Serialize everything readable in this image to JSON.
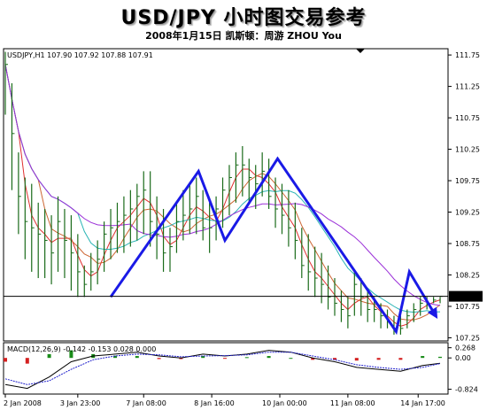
{
  "header": {
    "title": "USD/JPY 小时图交易参考",
    "subtitle": "2008年1月15日  凯斯顿：周游 ZHOU You"
  },
  "colors": {
    "price_bar": "#1a6b1a",
    "bar_up": "#1a8c1a",
    "bar_down": "#d42020",
    "ma_fast": "#e03030",
    "ma_mid": "#cc6633",
    "ma_slow": "#2ab4b4",
    "ma_slowest": "#9b30d8",
    "pattern": "#1a1ae6",
    "macd_line": "#000000",
    "signal_line": "#2020cc",
    "hist_pos": "#1a8c1a",
    "hist_neg": "#d42020"
  },
  "chart_data": {
    "type": "line",
    "instrument_label": "USDJPY,H1  107.90 107.92 107.88 107.91",
    "current_price": "107.91",
    "current_price_value": 107.91,
    "ylim": [
      107.2,
      111.85
    ],
    "y_ticks": [
      "111.75",
      "111.25",
      "110.75",
      "110.25",
      "109.75",
      "109.25",
      "108.75",
      "108.25",
      "107.75",
      "107.25"
    ],
    "x_ticks": [
      "2 Jan 2008",
      "3 Jan 23:00",
      "7 Jan 08:00",
      "8 Jan 16:00",
      "10 Jan 00:00",
      "11 Jan 08:00",
      "14 Jan 17:00"
    ],
    "x_range": [
      0,
      100
    ],
    "x_tick_positions": [
      0,
      16.5,
      31.5,
      47,
      62.5,
      78,
      94
    ],
    "price": {
      "x": [
        0,
        1.5,
        3,
        4.5,
        6,
        7.5,
        9,
        10.5,
        12,
        13.5,
        15,
        16.5,
        18,
        19.5,
        21,
        22.5,
        24,
        25.5,
        27,
        28.5,
        30,
        31.5,
        33,
        34.5,
        36,
        37.5,
        39,
        40.5,
        42,
        43.5,
        45,
        46.5,
        48,
        49.5,
        51,
        52.5,
        54,
        55.5,
        57,
        58.5,
        60,
        61.5,
        63,
        64.5,
        66,
        67.5,
        69,
        70.5,
        72,
        73.5,
        75,
        76.5,
        78,
        79.5,
        81,
        82.5,
        84,
        85.5,
        87,
        88.5,
        90,
        91.5,
        93,
        94.5,
        96,
        97.5,
        99
      ],
      "high": [
        111.8,
        111.3,
        110.2,
        109.8,
        109.7,
        109.4,
        109.3,
        109.2,
        109.5,
        109.3,
        109.2,
        108.9,
        108.4,
        108.6,
        108.8,
        109.1,
        109.3,
        109.4,
        109.5,
        109.6,
        109.7,
        109.9,
        109.9,
        109.5,
        109.3,
        109.0,
        109.4,
        109.6,
        109.7,
        109.8,
        109.6,
        109.4,
        109.5,
        109.8,
        110.0,
        110.2,
        110.3,
        110.1,
        110.0,
        110.2,
        110.1,
        109.8,
        109.7,
        109.6,
        109.4,
        109.0,
        108.9,
        108.7,
        108.6,
        108.4,
        108.2,
        108.0,
        107.9,
        108.3,
        108.2,
        108.0,
        107.9,
        107.8,
        107.7,
        107.6,
        107.6,
        107.7,
        107.8,
        107.9,
        107.9,
        107.9,
        107.9
      ],
      "low": [
        110.8,
        109.6,
        108.9,
        108.5,
        108.3,
        108.2,
        108.2,
        108.1,
        108.3,
        108.2,
        108.0,
        107.9,
        107.9,
        108.0,
        108.1,
        108.3,
        108.5,
        108.6,
        108.6,
        108.7,
        108.8,
        108.9,
        108.7,
        108.5,
        108.3,
        108.3,
        108.6,
        108.8,
        108.9,
        108.9,
        108.8,
        108.6,
        108.8,
        109.0,
        109.2,
        109.4,
        109.5,
        109.4,
        109.3,
        109.5,
        109.3,
        109.0,
        108.9,
        108.7,
        108.5,
        108.2,
        108.0,
        107.9,
        107.8,
        107.7,
        107.6,
        107.5,
        107.4,
        107.6,
        107.6,
        107.5,
        107.5,
        107.4,
        107.4,
        107.3,
        107.3,
        107.4,
        107.5,
        107.6,
        107.7,
        107.8,
        107.8
      ],
      "close": [
        111.6,
        110.5,
        109.5,
        109.1,
        109.0,
        108.9,
        108.8,
        108.6,
        109.1,
        108.8,
        108.6,
        108.3,
        108.1,
        108.3,
        108.5,
        108.9,
        109.0,
        109.1,
        109.2,
        109.3,
        109.5,
        109.6,
        109.1,
        108.9,
        108.6,
        108.7,
        109.1,
        109.2,
        109.3,
        109.5,
        109.0,
        109.0,
        109.3,
        109.6,
        109.8,
        110.0,
        110.0,
        109.8,
        109.7,
        109.9,
        109.5,
        109.3,
        109.2,
        109.0,
        108.8,
        108.4,
        108.3,
        108.2,
        108.1,
        107.9,
        107.8,
        107.7,
        107.6,
        108.1,
        107.9,
        107.7,
        107.7,
        107.6,
        107.5,
        107.4,
        107.4,
        107.6,
        107.7,
        107.8,
        107.8,
        107.85,
        107.91
      ]
    },
    "pattern_line": {
      "x": [
        24,
        44,
        50,
        62,
        89,
        92,
        98
      ],
      "y": [
        107.9,
        109.9,
        108.8,
        110.1,
        107.35,
        108.3,
        107.6
      ]
    },
    "macd": {
      "label": "MACD(12,26,9) -0.142 -0.153 0.028 0.000",
      "ylim": [
        -0.95,
        0.4
      ],
      "y_ticks": [
        "0.268",
        "0.00",
        "-0.824"
      ],
      "x": [
        0,
        5,
        10,
        15,
        20,
        25,
        30,
        35,
        40,
        45,
        50,
        55,
        60,
        65,
        70,
        75,
        80,
        85,
        90,
        95,
        99
      ],
      "macd_line": [
        -0.7,
        -0.8,
        -0.5,
        -0.1,
        0.05,
        0.1,
        0.15,
        0.05,
        0.0,
        0.1,
        0.05,
        0.1,
        0.2,
        0.15,
        0.0,
        -0.1,
        -0.25,
        -0.3,
        -0.35,
        -0.2,
        -0.14
      ],
      "signal_line": [
        -0.55,
        -0.7,
        -0.6,
        -0.3,
        -0.05,
        0.05,
        0.1,
        0.08,
        0.03,
        0.05,
        0.06,
        0.08,
        0.15,
        0.15,
        0.05,
        -0.05,
        -0.18,
        -0.25,
        -0.3,
        -0.25,
        -0.15
      ],
      "histogram": [
        -0.1,
        -0.15,
        0.1,
        0.2,
        0.1,
        0.06,
        0.05,
        -0.03,
        -0.03,
        0.05,
        -0.01,
        0.02,
        0.05,
        0.0,
        -0.05,
        -0.05,
        -0.07,
        -0.05,
        -0.05,
        0.05,
        0.03
      ]
    }
  }
}
